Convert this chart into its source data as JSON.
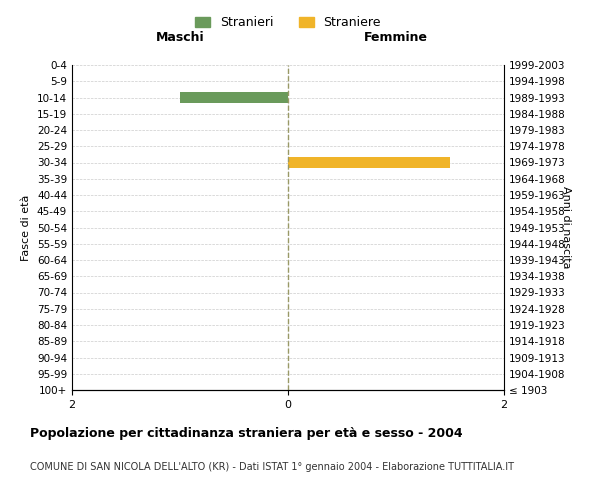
{
  "age_groups": [
    "100+",
    "95-99",
    "90-94",
    "85-89",
    "80-84",
    "75-79",
    "70-74",
    "65-69",
    "60-64",
    "55-59",
    "50-54",
    "45-49",
    "40-44",
    "35-39",
    "30-34",
    "25-29",
    "20-24",
    "15-19",
    "10-14",
    "5-9",
    "0-4"
  ],
  "birth_years": [
    "≤ 1903",
    "1904-1908",
    "1909-1913",
    "1914-1918",
    "1919-1923",
    "1924-1928",
    "1929-1933",
    "1934-1938",
    "1939-1943",
    "1944-1948",
    "1949-1953",
    "1954-1958",
    "1959-1963",
    "1964-1968",
    "1969-1973",
    "1974-1978",
    "1979-1983",
    "1984-1988",
    "1989-1993",
    "1994-1998",
    "1999-2003"
  ],
  "males": [
    0,
    0,
    0,
    0,
    0,
    0,
    0,
    0,
    0,
    0,
    0,
    0,
    0,
    0,
    0,
    0,
    0,
    0,
    1,
    0,
    0
  ],
  "females": [
    0,
    0,
    0,
    0,
    0,
    0,
    0,
    0,
    0,
    0,
    0,
    0,
    0,
    0,
    1.5,
    0,
    0,
    0,
    0,
    0,
    0
  ],
  "male_color": "#6a9a5b",
  "female_color": "#f0b429",
  "xlim": [
    -2,
    2
  ],
  "xticks": [
    -2,
    0,
    2
  ],
  "xtick_labels": [
    "2",
    "0",
    "2"
  ],
  "title": "Popolazione per cittadinanza straniera per età e sesso - 2004",
  "subtitle": "COMUNE DI SAN NICOLA DELL'ALTO (KR) - Dati ISTAT 1° gennaio 2004 - Elaborazione TUTTITALIA.IT",
  "ylabel_left": "Fasce di età",
  "ylabel_right": "Anni di nascita",
  "header_left": "Maschi",
  "header_right": "Femmine",
  "legend_stranieri": "Stranieri",
  "legend_straniere": "Straniere",
  "background_color": "#ffffff",
  "grid_color": "#cccccc"
}
